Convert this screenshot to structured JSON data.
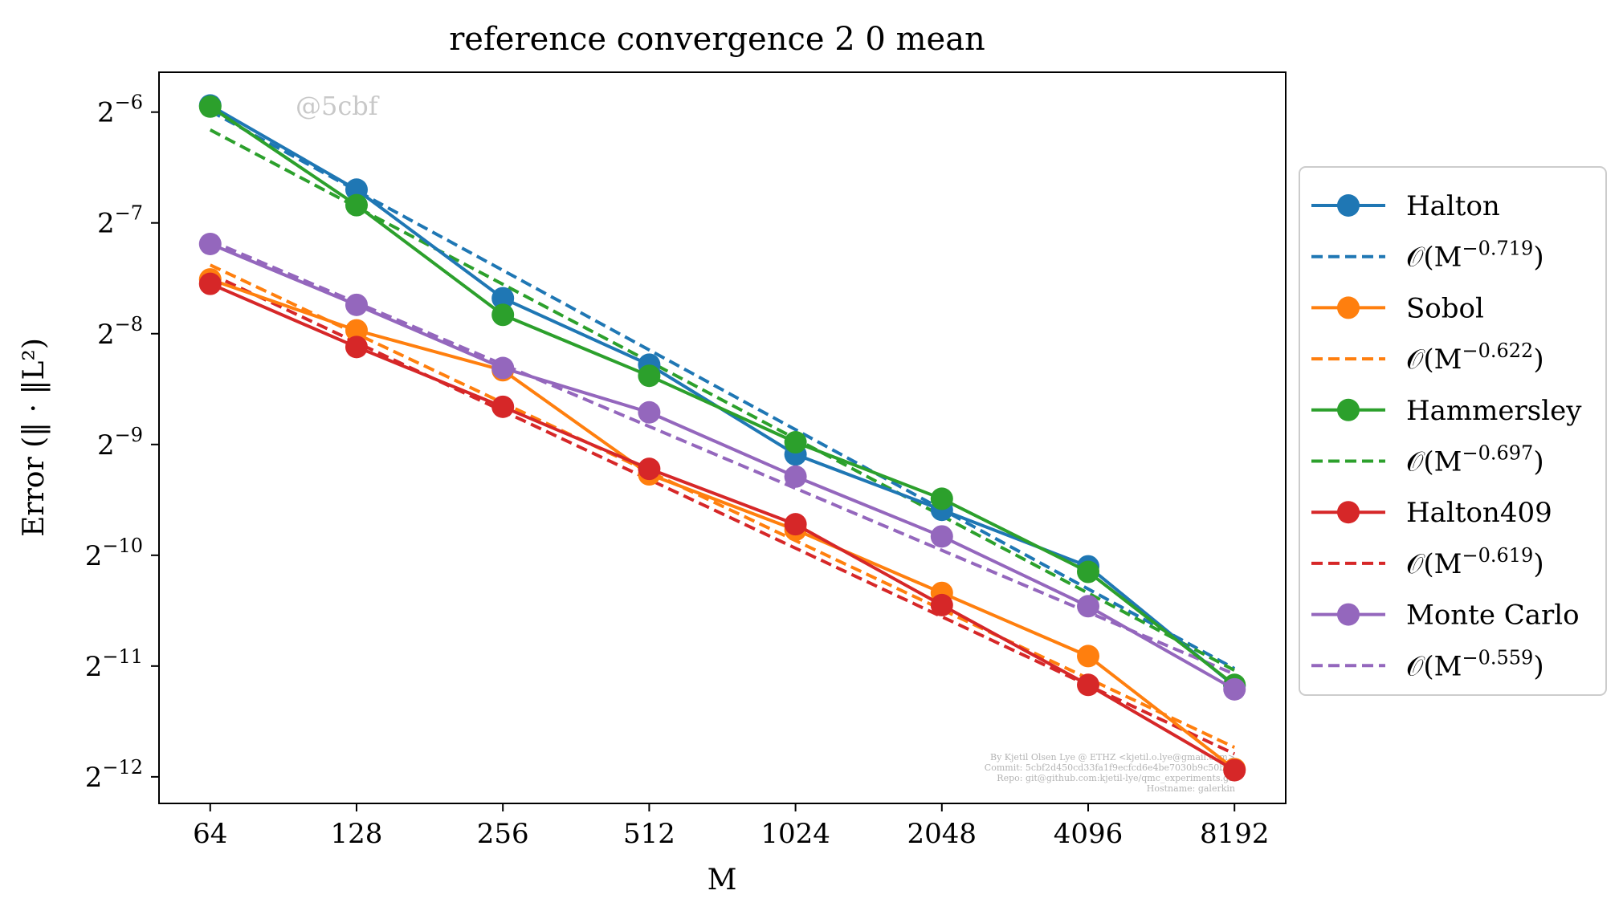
{
  "chart_data": {
    "type": "line",
    "title": "reference convergence 2 0 mean",
    "xlabel": "M",
    "ylabel": "Error (‖ · ‖L²)",
    "x_scale": "log2",
    "y_scale": "log2",
    "x": [
      64,
      128,
      256,
      512,
      1024,
      2048,
      4096,
      8192
    ],
    "x_tick_labels": [
      "64",
      "128",
      "256",
      "512",
      "1024",
      "2048",
      "4096",
      "8192"
    ],
    "y_ticks": [
      {
        "base": "2",
        "exp": "−6",
        "value": -6
      },
      {
        "base": "2",
        "exp": "−7",
        "value": -7
      },
      {
        "base": "2",
        "exp": "−8",
        "value": -8
      },
      {
        "base": "2",
        "exp": "−9",
        "value": -9
      },
      {
        "base": "2",
        "exp": "−10",
        "value": -10
      },
      {
        "base": "2",
        "exp": "−11",
        "value": -11
      },
      {
        "base": "2",
        "exp": "−12",
        "value": -12
      }
    ],
    "xlim_log2": [
      5.65,
      13.35
    ],
    "ylim_log2": [
      -12.24,
      -5.64
    ],
    "grid": false,
    "legend_position": "outside-right",
    "watermark": "@5cbf",
    "credit_lines": [
      "By Kjetil Olsen Lye @ ETHZ <kjetil.o.lye@gmail.com>",
      "Commit: 5cbf2d450cd33fa1f9ecfcd6e4be7030b9c50bca",
      "Repo: git@github.com:kjetil-lye/qmc_experiments.git",
      "Hostname: galerkin"
    ],
    "series": [
      {
        "name": "Halton",
        "color": "#1f77b4",
        "log2_values": [
          -5.94,
          -6.7,
          -7.68,
          -8.28,
          -9.09,
          -9.59,
          -10.1,
          -11.18
        ],
        "fit": {
          "label": "𝒪(M",
          "exponent": "−0.719",
          "close": ")",
          "log2_start": -5.99,
          "log2_slope": -0.719
        }
      },
      {
        "name": "Sobol",
        "color": "#ff7f0e",
        "log2_values": [
          -7.51,
          -7.97,
          -8.33,
          -9.27,
          -9.77,
          -10.34,
          -10.91,
          -11.93
        ],
        "fit": {
          "label": "𝒪(M",
          "exponent": "−0.622",
          "close": ")",
          "log2_start": -7.38,
          "log2_slope": -0.622
        }
      },
      {
        "name": "Hammersley",
        "color": "#2ca02c",
        "log2_values": [
          -5.95,
          -6.84,
          -7.83,
          -8.38,
          -8.98,
          -9.49,
          -10.15,
          -11.17
        ],
        "fit": {
          "label": "𝒪(M",
          "exponent": "−0.697",
          "close": ")",
          "log2_start": -6.16,
          "log2_slope": -0.697
        }
      },
      {
        "name": "Halton409",
        "color": "#d62728",
        "log2_values": [
          -7.55,
          -8.12,
          -8.66,
          -9.22,
          -9.72,
          -10.45,
          -11.17,
          -11.94
        ],
        "fit": {
          "label": "𝒪(M",
          "exponent": "−0.619",
          "close": ")",
          "log2_start": -7.46,
          "log2_slope": -0.619
        }
      },
      {
        "name": "Monte Carlo",
        "color": "#9467bd",
        "log2_values": [
          -7.19,
          -7.74,
          -8.31,
          -8.71,
          -9.29,
          -9.83,
          -10.46,
          -11.21
        ],
        "fit": {
          "label": "𝒪(M",
          "exponent": "−0.559",
          "close": ")",
          "log2_start": -7.16,
          "log2_slope": -0.559
        }
      }
    ]
  }
}
